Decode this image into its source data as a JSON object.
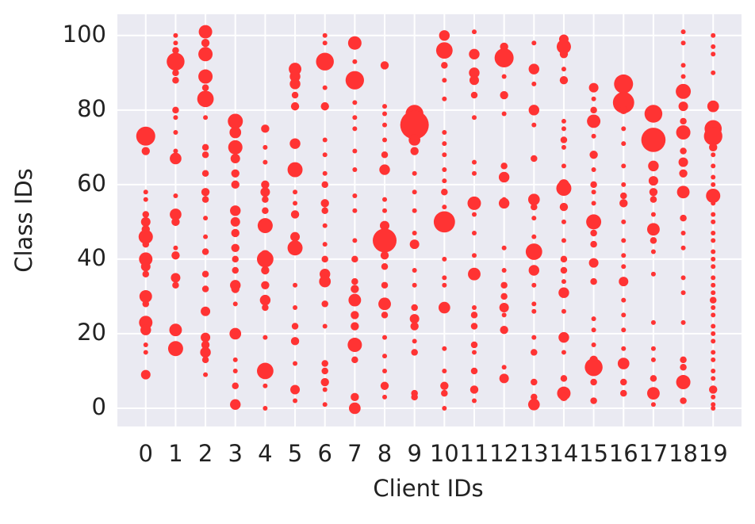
{
  "chart_data": {
    "type": "scatter",
    "xlabel": "Client IDs",
    "ylabel": "Class IDs",
    "color": "#ff3333",
    "xlim": [
      -0.95,
      19.95
    ],
    "ylim": [
      -4.9,
      105.7
    ],
    "xticks": [
      0,
      1,
      2,
      3,
      4,
      5,
      6,
      7,
      8,
      9,
      10,
      11,
      12,
      13,
      14,
      15,
      16,
      17,
      18,
      19
    ],
    "yticks": [
      0,
      20,
      40,
      60,
      80,
      100
    ],
    "grid": true,
    "x": [
      0,
      0,
      0,
      0,
      0,
      0,
      0,
      0,
      0,
      0,
      0,
      0,
      0,
      0,
      0,
      0,
      0,
      0,
      0,
      1,
      1,
      1,
      1,
      1,
      1,
      1,
      1,
      1,
      1,
      1,
      1,
      1,
      1,
      1,
      1,
      1,
      1,
      1,
      1,
      2,
      2,
      2,
      2,
      2,
      2,
      2,
      2,
      2,
      2,
      2,
      2,
      2,
      2,
      2,
      2,
      2,
      2,
      2,
      2,
      2,
      2,
      2,
      3,
      3,
      3,
      3,
      3,
      3,
      3,
      3,
      3,
      3,
      3,
      3,
      3,
      3,
      3,
      3,
      3,
      3,
      3,
      3,
      4,
      4,
      4,
      4,
      4,
      4,
      4,
      4,
      4,
      4,
      4,
      4,
      4,
      4,
      4,
      4,
      4,
      4,
      5,
      5,
      5,
      5,
      5,
      5,
      5,
      5,
      5,
      5,
      5,
      5,
      5,
      5,
      5,
      5,
      5,
      5,
      5,
      6,
      6,
      6,
      6,
      6,
      6,
      6,
      6,
      6,
      6,
      6,
      6,
      6,
      6,
      6,
      6,
      6,
      6,
      6,
      6,
      6,
      6,
      6,
      7,
      7,
      7,
      7,
      7,
      7,
      7,
      7,
      7,
      7,
      7,
      7,
      7,
      7,
      7,
      7,
      7,
      7,
      7,
      7,
      7,
      8,
      8,
      8,
      8,
      8,
      8,
      8,
      8,
      8,
      8,
      8,
      8,
      8,
      8,
      8,
      8,
      8,
      8,
      8,
      8,
      8,
      9,
      9,
      9,
      9,
      9,
      9,
      9,
      9,
      9,
      9,
      9,
      9,
      9,
      9,
      9,
      9,
      9,
      9,
      10,
      10,
      10,
      10,
      10,
      10,
      10,
      10,
      10,
      10,
      10,
      10,
      10,
      10,
      10,
      10,
      10,
      10,
      10,
      10,
      10,
      10,
      11,
      11,
      11,
      11,
      11,
      11,
      11,
      11,
      11,
      11,
      11,
      11,
      11,
      11,
      11,
      11,
      11,
      11,
      11,
      11,
      11,
      12,
      12,
      12,
      12,
      12,
      12,
      12,
      12,
      12,
      12,
      12,
      12,
      12,
      12,
      12,
      12,
      12,
      12,
      13,
      13,
      13,
      13,
      13,
      13,
      13,
      13,
      13,
      13,
      13,
      13,
      13,
      13,
      13,
      13,
      13,
      13,
      13,
      13,
      14,
      14,
      14,
      14,
      14,
      14,
      14,
      14,
      14,
      14,
      14,
      14,
      14,
      14,
      14,
      14,
      14,
      14,
      14,
      14,
      14,
      14,
      14,
      14,
      14,
      15,
      15,
      15,
      15,
      15,
      15,
      15,
      15,
      15,
      15,
      15,
      15,
      15,
      15,
      15,
      15,
      15,
      15,
      15,
      15,
      15,
      15,
      16,
      16,
      16,
      16,
      16,
      16,
      16,
      16,
      16,
      16,
      16,
      16,
      16,
      16,
      16,
      16,
      16,
      16,
      16,
      16,
      16,
      17,
      17,
      17,
      17,
      17,
      17,
      17,
      17,
      17,
      17,
      17,
      17,
      17,
      17,
      17,
      17,
      17,
      18,
      18,
      18,
      18,
      18,
      18,
      18,
      18,
      18,
      18,
      18,
      18,
      18,
      18,
      18,
      18,
      18,
      18,
      18,
      18,
      18,
      18,
      19,
      19,
      19,
      19,
      19,
      19,
      19,
      19,
      19,
      19,
      19,
      19,
      19,
      19,
      19,
      19,
      19,
      19,
      19,
      19,
      19,
      19,
      19,
      19,
      19,
      19,
      19,
      19,
      19,
      19,
      19,
      19,
      19,
      19,
      19,
      19,
      19,
      19
    ],
    "values": [
      73,
      69,
      58,
      56,
      52,
      50,
      48,
      46,
      44,
      40,
      38,
      36,
      30,
      28,
      23,
      21,
      17,
      15,
      9,
      100,
      98,
      96,
      93,
      90,
      88,
      80,
      78,
      74,
      69,
      67,
      57,
      52,
      50,
      43,
      41,
      35,
      33,
      21,
      16,
      101,
      98,
      95,
      89,
      86,
      83,
      78,
      70,
      68,
      63,
      58,
      56,
      51,
      46,
      42,
      36,
      32,
      26,
      19,
      17,
      15,
      13,
      9,
      77,
      74,
      70,
      67,
      63,
      60,
      53,
      50,
      47,
      43,
      40,
      37,
      33,
      32,
      28,
      20,
      13,
      10,
      6,
      1,
      75,
      70,
      66,
      60,
      58,
      56,
      53,
      49,
      41,
      40,
      37,
      33,
      29,
      27,
      19,
      10,
      6,
      0,
      91,
      89,
      87,
      84,
      81,
      71,
      64,
      58,
      55,
      52,
      46,
      43,
      33,
      27,
      22,
      18,
      12,
      5,
      2,
      100,
      98,
      93,
      86,
      81,
      72,
      68,
      63,
      60,
      55,
      53,
      49,
      44,
      40,
      36,
      34,
      28,
      22,
      12,
      10,
      7,
      5,
      1,
      98,
      93,
      88,
      82,
      78,
      75,
      69,
      64,
      57,
      53,
      45,
      40,
      34,
      32,
      29,
      25,
      22,
      17,
      13,
      3,
      0,
      92,
      81,
      79,
      76,
      72,
      68,
      64,
      56,
      53,
      49,
      45,
      41,
      38,
      33,
      28,
      25,
      19,
      14,
      10,
      6,
      3,
      79,
      76,
      72,
      69,
      63,
      58,
      53,
      47,
      44,
      37,
      33,
      27,
      24,
      22,
      18,
      15,
      4,
      3,
      100,
      96,
      92,
      88,
      83,
      74,
      71,
      68,
      64,
      61,
      58,
      54,
      50,
      40,
      35,
      33,
      27,
      16,
      10,
      6,
      4,
      0,
      101,
      95,
      90,
      88,
      84,
      78,
      66,
      63,
      55,
      52,
      47,
      41,
      36,
      27,
      25,
      22,
      17,
      15,
      10,
      5,
      2,
      97,
      94,
      89,
      84,
      79,
      65,
      62,
      56,
      55,
      43,
      37,
      33,
      30,
      27,
      25,
      21,
      11,
      8,
      98,
      91,
      87,
      80,
      76,
      67,
      56,
      54,
      51,
      46,
      42,
      37,
      33,
      28,
      26,
      19,
      15,
      7,
      3,
      1,
      99,
      97,
      95,
      91,
      88,
      77,
      75,
      72,
      70,
      65,
      60,
      59,
      54,
      50,
      45,
      40,
      37,
      34,
      31,
      26,
      19,
      15,
      8,
      4,
      3,
      86,
      83,
      80,
      77,
      73,
      68,
      64,
      60,
      58,
      55,
      50,
      47,
      44,
      39,
      34,
      24,
      21,
      17,
      13,
      11,
      7,
      2,
      87,
      82,
      80,
      75,
      71,
      65,
      60,
      57,
      55,
      50,
      45,
      41,
      38,
      34,
      29,
      25,
      21,
      16,
      12,
      7,
      4,
      79,
      72,
      65,
      61,
      58,
      56,
      52,
      48,
      45,
      42,
      36,
      23,
      16,
      13,
      8,
      4,
      1,
      101,
      98,
      92,
      89,
      85,
      81,
      77,
      74,
      69,
      66,
      63,
      58,
      51,
      47,
      43,
      35,
      31,
      23,
      13,
      11,
      7,
      2,
      100,
      97,
      95,
      90,
      81,
      75,
      73,
      70,
      68,
      65,
      62,
      60,
      57,
      55,
      52,
      50,
      47,
      45,
      42,
      40,
      38,
      35,
      33,
      31,
      29,
      27,
      25,
      22,
      20,
      18,
      15,
      13,
      10,
      8,
      5,
      3,
      1,
      0
    ],
    "sizes": [
      16,
      3,
      1,
      1,
      2,
      4,
      3,
      9,
      2,
      8,
      4,
      2,
      7,
      2,
      8,
      5,
      1,
      1,
      4,
      1,
      1,
      2,
      14,
      2,
      2,
      2,
      1,
      1,
      1,
      6,
      1,
      6,
      3,
      1,
      3,
      4,
      2,
      7,
      10,
      8,
      3,
      9,
      9,
      2,
      12,
      1,
      2,
      2,
      2,
      3,
      2,
      1,
      1,
      2,
      2,
      2,
      4,
      4,
      3,
      5,
      2,
      1,
      10,
      6,
      9,
      4,
      3,
      3,
      5,
      4,
      3,
      3,
      2,
      2,
      5,
      3,
      1,
      6,
      1,
      1,
      2,
      5,
      3,
      1,
      1,
      3,
      4,
      2,
      2,
      10,
      5,
      12,
      3,
      3,
      5,
      2,
      1,
      12,
      1,
      1,
      7,
      5,
      5,
      2,
      3,
      5,
      10,
      1,
      1,
      3,
      4,
      10,
      1,
      1,
      2,
      3,
      1,
      4,
      1,
      1,
      1,
      14,
      1,
      3,
      1,
      1,
      1,
      2,
      3,
      2,
      1,
      1,
      2,
      5,
      6,
      2,
      1,
      2,
      2,
      3,
      1,
      1,
      8,
      1,
      15,
      1,
      1,
      1,
      1,
      1,
      1,
      1,
      1,
      2,
      2,
      3,
      7,
      3,
      3,
      9,
      2,
      3,
      6,
      3,
      1,
      1,
      1,
      1,
      2,
      5,
      1,
      1,
      4,
      25,
      3,
      2,
      2,
      7,
      2,
      1,
      1,
      1,
      3,
      1,
      14,
      36,
      6,
      3,
      1,
      1,
      1,
      1,
      4,
      1,
      1,
      2,
      4,
      3,
      1,
      2,
      2,
      2,
      5,
      12,
      2,
      1,
      1,
      1,
      1,
      1,
      1,
      1,
      2,
      1,
      20,
      1,
      1,
      1,
      6,
      1,
      1,
      3,
      2,
      1,
      1,
      5,
      5,
      4,
      2,
      1,
      1,
      1,
      8,
      1,
      1,
      1,
      7,
      1,
      2,
      2,
      2,
      1,
      2,
      3,
      1,
      3,
      16,
      1,
      3,
      1,
      2,
      5,
      1,
      5,
      1,
      1,
      2,
      2,
      4,
      1,
      3,
      1,
      4,
      1,
      5,
      1,
      5,
      1,
      2,
      6,
      2,
      1,
      1,
      12,
      5,
      1,
      1,
      1,
      1,
      2,
      2,
      2,
      6,
      4,
      9,
      3,
      1,
      3,
      1,
      1,
      2,
      1,
      1,
      5,
      10,
      3,
      1,
      1,
      2,
      2,
      1,
      5,
      1,
      5,
      1,
      2,
      8,
      3,
      4,
      1,
      2,
      8,
      1,
      3,
      1,
      2,
      1,
      1,
      10,
      2,
      2,
      4,
      2,
      1,
      1,
      1,
      3,
      14,
      2,
      2,
      16,
      20,
      3,
      1,
      1,
      1,
      1,
      2,
      3,
      1,
      1,
      1,
      1,
      4,
      1,
      1,
      1,
      1,
      6,
      2,
      2,
      14,
      26,
      5,
      4,
      3,
      2,
      1,
      7,
      2,
      1,
      1,
      1,
      1,
      1,
      2,
      7,
      1,
      1,
      1,
      1,
      1,
      10,
      4,
      2,
      9,
      2,
      4,
      3,
      7,
      2,
      1,
      1,
      1,
      1,
      1,
      2,
      2,
      9,
      2,
      1,
      1,
      1,
      1,
      6,
      13,
      15,
      3,
      1,
      1,
      1,
      1,
      9,
      1,
      1,
      1,
      1,
      1,
      1,
      1,
      1,
      1,
      1,
      1,
      2,
      1,
      1,
      1,
      1,
      1,
      1,
      1,
      1,
      1,
      3,
      1,
      1,
      1
    ]
  }
}
